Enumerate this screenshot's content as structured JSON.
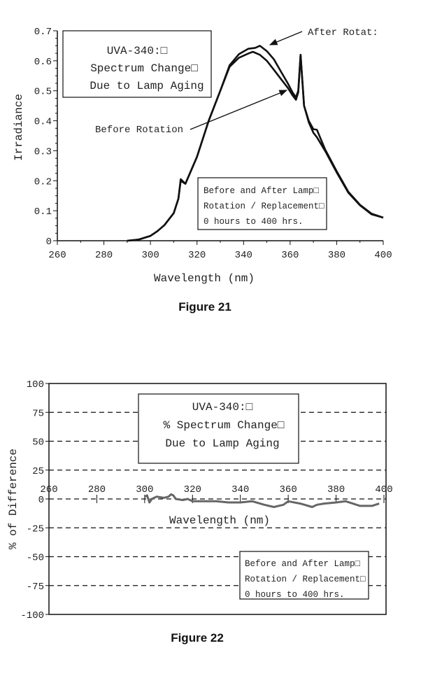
{
  "chart_data": [
    {
      "type": "line",
      "caption": "Figure 21",
      "xlabel": "Wavelength (nm)",
      "ylabel": "Irradiance",
      "xlim": [
        260,
        400
      ],
      "ylim": [
        0,
        0.7
      ],
      "xticks": [
        "260",
        "280",
        "300",
        "320",
        "340",
        "360",
        "380",
        "400"
      ],
      "yticks": [
        "0",
        "0.1",
        "0.2",
        "0.3",
        "0.4",
        "0.5",
        "0.6",
        "0.7"
      ],
      "title_box": [
        "UVA-340:□",
        "Spectrum Change□",
        "Due to Lamp Aging"
      ],
      "note_box": [
        "Before and After Lamp□",
        "Rotation / Replacement□",
        "0 hours to 400 hrs."
      ],
      "annotations": {
        "after": "After Rotat:",
        "before": "Before Rotation"
      },
      "series": [
        {
          "x": [
            290,
            295,
            300,
            303,
            306,
            310,
            312,
            313,
            315,
            320,
            325,
            330,
            334,
            338,
            342,
            345,
            347,
            350,
            353,
            356,
            359,
            361,
            362.5,
            363.5,
            364.5,
            366,
            368,
            370,
            371.5,
            375,
            380,
            385,
            390,
            395,
            400
          ],
          "y": [
            0,
            0.004,
            0.016,
            0.032,
            0.052,
            0.092,
            0.14,
            0.205,
            0.19,
            0.28,
            0.4,
            0.5,
            0.585,
            0.622,
            0.64,
            0.643,
            0.65,
            0.632,
            0.605,
            0.565,
            0.525,
            0.495,
            0.478,
            0.5,
            0.62,
            0.45,
            0.4,
            0.372,
            0.37,
            0.305,
            0.232,
            0.163,
            0.12,
            0.09,
            0.077
          ]
        },
        {
          "x": [
            290,
            295,
            300,
            303,
            306,
            310,
            312,
            313,
            315,
            320,
            325,
            330,
            334,
            338,
            342,
            344,
            347,
            350,
            353,
            356,
            359,
            361,
            362.5,
            363.5,
            364.5,
            366,
            368,
            370,
            371.5,
            375,
            380,
            385,
            390,
            395,
            400
          ],
          "y": [
            0,
            0.004,
            0.016,
            0.032,
            0.052,
            0.092,
            0.14,
            0.2,
            0.19,
            0.28,
            0.4,
            0.5,
            0.58,
            0.61,
            0.624,
            0.63,
            0.62,
            0.6,
            0.57,
            0.54,
            0.51,
            0.485,
            0.47,
            0.495,
            0.62,
            0.45,
            0.395,
            0.36,
            0.345,
            0.3,
            0.228,
            0.16,
            0.118,
            0.088,
            0.077
          ]
        }
      ]
    },
    {
      "type": "line",
      "caption": "Figure 22",
      "xlabel": "Wavelength (nm)",
      "ylabel": "% of Difference",
      "xlim": [
        260,
        400
      ],
      "ylim": [
        -100,
        100
      ],
      "grid": "dashed horizontal",
      "xticks": [
        "260",
        "280",
        "300",
        "320",
        "340",
        "360",
        "380",
        "400"
      ],
      "yticks": [
        "100",
        "75",
        "50",
        "25",
        "0",
        "-25",
        "-50",
        "-75",
        "-100"
      ],
      "title_box": [
        "UVA-340:□",
        "% Spectrum Change□",
        "Due to Lamp Aging"
      ],
      "note_box": [
        "Before and After Lamp□",
        "Rotation / Replacement□",
        "0 hours to 400 hrs."
      ],
      "series": [
        {
          "color": "#666666",
          "x": [
            300,
            301,
            302,
            303,
            305,
            308,
            310,
            311,
            312,
            313,
            316,
            318,
            320,
            325,
            330,
            335,
            340,
            345,
            350,
            354,
            358,
            360,
            365,
            370,
            372,
            375,
            380,
            384,
            387,
            390,
            395,
            398
          ],
          "y": [
            2,
            3,
            -3,
            0,
            2,
            1,
            2,
            4,
            3,
            0,
            -1,
            0,
            -2,
            -2,
            -2,
            -3,
            -3,
            -2,
            -5,
            -7,
            -5,
            -2,
            -4,
            -7,
            -5,
            -4,
            -3,
            -2,
            -4,
            -6,
            -6,
            -4
          ]
        }
      ]
    }
  ]
}
